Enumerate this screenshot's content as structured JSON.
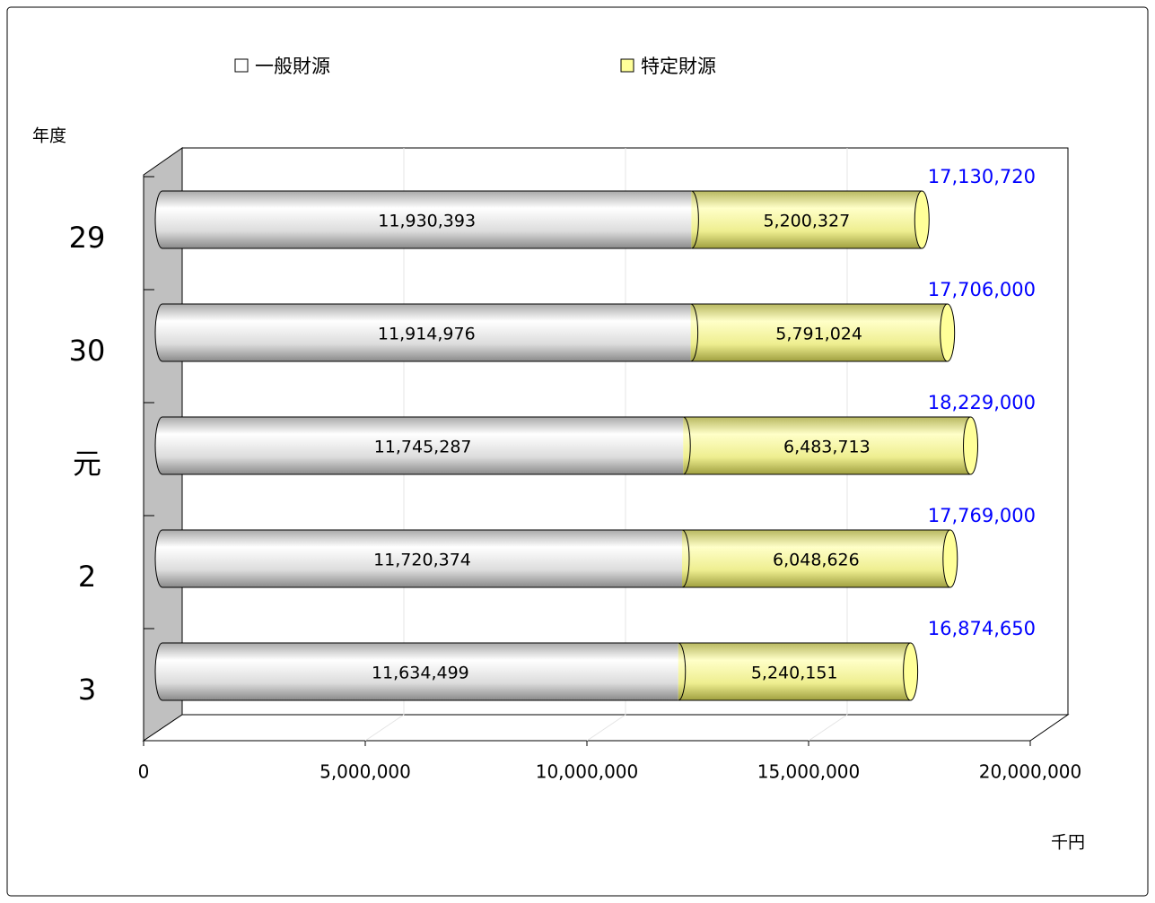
{
  "chart_data": {
    "type": "bar",
    "orientation": "horizontal",
    "stacked": true,
    "y_label": "年度",
    "x_label": "千円",
    "categories": [
      "29",
      "30",
      "元",
      "2",
      "3"
    ],
    "series": [
      {
        "name": "一般財源",
        "color": "#ffffff",
        "values": [
          11930393,
          11914976,
          11745287,
          11720374,
          11634499
        ],
        "value_labels": [
          "11,930,393",
          "11,914,976",
          "11,745,287",
          "11,720,374",
          "11,634,499"
        ]
      },
      {
        "name": "特定財源",
        "color": "#ffff99",
        "values": [
          5200327,
          5791024,
          6483713,
          6048626,
          5240151
        ],
        "value_labels": [
          "5,200,327",
          "5,791,024",
          "6,483,713",
          "6,048,626",
          "5,240,151"
        ]
      }
    ],
    "totals": [
      17130720,
      17706000,
      18229000,
      17769000,
      16874650
    ],
    "total_labels": [
      "17,130,720",
      "17,706,000",
      "18,229,000",
      "17,769,000",
      "16,874,650"
    ],
    "total_color": "#0000ff",
    "xlim": [
      0,
      20000000
    ],
    "xticks": [
      0,
      {
        "value": 5000000,
        "label": "5,000,000"
      },
      {
        "value": 10000000,
        "label": "10,000,000"
      },
      {
        "value": 15000000,
        "label": "15,000,000"
      },
      {
        "value": 20000000,
        "label": "20,000,000"
      }
    ],
    "grid": true,
    "legend": "top"
  }
}
